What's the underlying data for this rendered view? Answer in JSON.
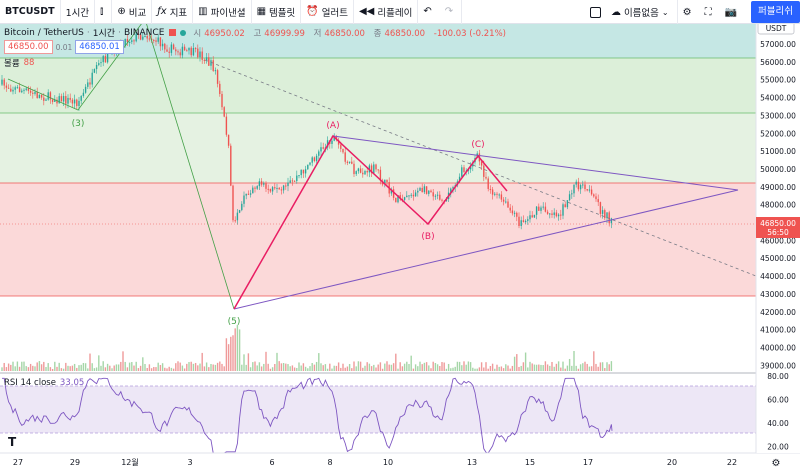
{
  "toolbar": {
    "symbol": "BTCUSDT",
    "interval": "1시간",
    "compare": "비교",
    "indicators": "지표",
    "financials": "파이낸셜",
    "templates": "템플릿",
    "alert": "얼러트",
    "replay": "리플레이",
    "layout_name": "이름없음",
    "publish": "퍼블리쉬"
  },
  "legend": {
    "title": "Bitcoin / TetherUS",
    "interval": "1시간",
    "exchange": "BINANCE",
    "o_label": "시",
    "o": "46950.02",
    "h_label": "고",
    "h": "46999.99",
    "l_label": "저",
    "l": "46850.00",
    "c_label": "종",
    "c": "46850.00",
    "change": "-100.03 (-0.21%)",
    "sell": "46850.00",
    "spread": "0.01",
    "buy": "46850.01",
    "volume_label": "볼륨",
    "volume_value": "88"
  },
  "price_axis": {
    "currency": "USDT",
    "ticks": [
      "57000.00",
      "56000.00",
      "55000.00",
      "54000.00",
      "53000.00",
      "52000.00",
      "51000.00",
      "50000.00",
      "49000.00",
      "48000.00",
      "47000.00",
      "46000.00",
      "45000.00",
      "44000.00",
      "43000.00",
      "42000.00",
      "41000.00",
      "40000.00",
      "39000.00"
    ],
    "last_price": "46850.00",
    "countdown": "56:50"
  },
  "rsi": {
    "label": "RSI 14 close",
    "value": "33.05",
    "ticks": [
      "80.00",
      "60.00",
      "40.00",
      "20.00"
    ]
  },
  "time_axis": {
    "ticks": [
      "27",
      "29",
      "12월",
      "3",
      "6",
      "8",
      "10",
      "13",
      "15",
      "17",
      "20",
      "22"
    ]
  },
  "waves": [
    "(3)",
    "(5)",
    "(A)",
    "(B)",
    "(C)"
  ],
  "colors": {
    "up": "#26a69a",
    "down": "#ef5350",
    "wave_line": "#e91e63",
    "triangle": "#7e57c2",
    "publish": "#2962ff"
  }
}
